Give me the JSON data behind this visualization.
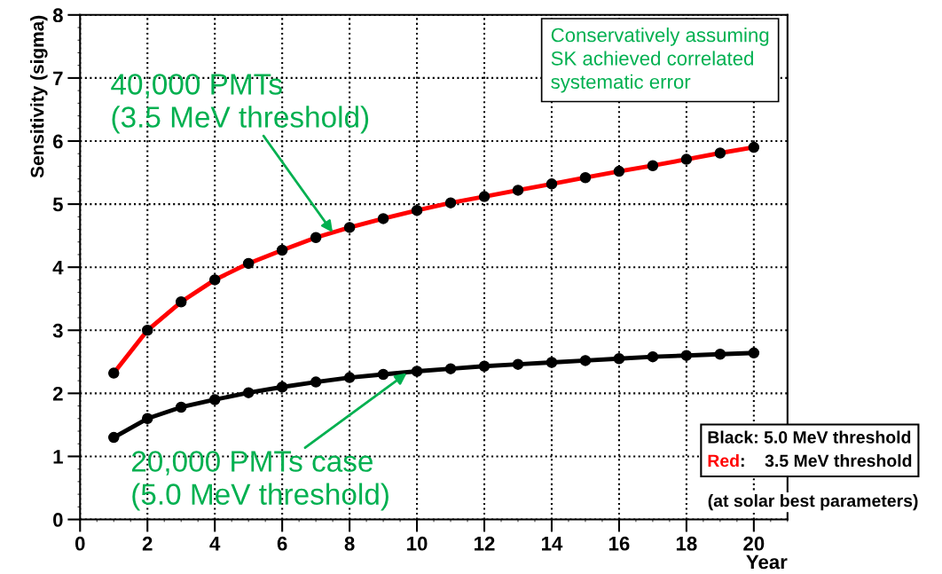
{
  "chart_data": {
    "type": "line",
    "xlabel": "Year",
    "ylabel": "Sensitivity (sigma)",
    "x": [
      1,
      2,
      3,
      4,
      5,
      6,
      7,
      8,
      9,
      10,
      11,
      12,
      13,
      14,
      15,
      16,
      17,
      18,
      19,
      20
    ],
    "series": [
      {
        "name": "Black: 5.0 MeV threshold",
        "color": "#000000",
        "values": [
          1.3,
          1.6,
          1.78,
          1.9,
          2.01,
          2.1,
          2.18,
          2.25,
          2.3,
          2.35,
          2.39,
          2.43,
          2.46,
          2.49,
          2.52,
          2.55,
          2.58,
          2.6,
          2.62,
          2.64
        ]
      },
      {
        "name": "Red:    3.5 MeV threshold",
        "color": "#ff0000",
        "values": [
          2.32,
          3.0,
          3.45,
          3.8,
          4.06,
          4.27,
          4.47,
          4.63,
          4.77,
          4.9,
          5.02,
          5.12,
          5.22,
          5.32,
          5.42,
          5.52,
          5.61,
          5.71,
          5.81,
          5.9
        ]
      }
    ],
    "xlim": [
      0,
      21
    ],
    "xticks": [
      0,
      2,
      4,
      6,
      8,
      10,
      12,
      14,
      16,
      18,
      20
    ],
    "ylim": [
      0,
      8
    ],
    "yticks": [
      0,
      1,
      2,
      3,
      4,
      5,
      6,
      7,
      8
    ],
    "grid": true,
    "legend": "bottom right",
    "marker": "circle",
    "line_style": "solid",
    "annotations": [
      {
        "text": "40,000 PMTs\n(3.5 MeV threshold)",
        "x": 7.5,
        "y": 4.55
      },
      {
        "text": "20,000 PMTs case\n(5.0 MeV threshold)",
        "x": 9.7,
        "y": 2.32
      },
      "Conservatively assuming\nSK achieved correlated\nsystematic error",
      "(at solar best parameters)"
    ]
  }
}
